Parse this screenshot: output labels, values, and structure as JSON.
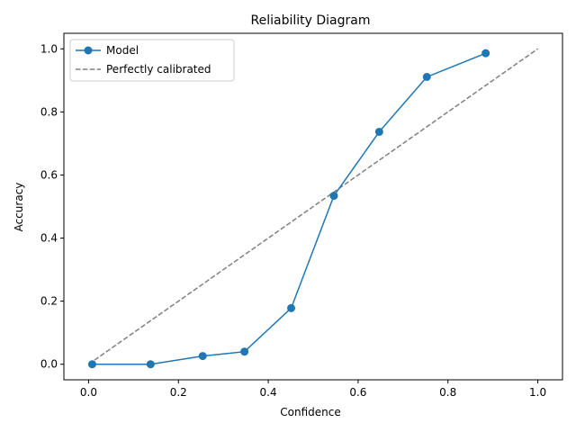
{
  "chart_data": {
    "type": "line",
    "title": "Reliability Diagram",
    "xlabel": "Confidence",
    "ylabel": "Accuracy",
    "xlim": [
      -0.055,
      1.055
    ],
    "ylim": [
      -0.0493,
      1.0493
    ],
    "xticks": [
      0.0,
      0.2,
      0.4,
      0.6,
      0.8,
      1.0
    ],
    "xtick_labels": [
      "0.0",
      "0.2",
      "0.4",
      "0.6",
      "0.8",
      "1.0"
    ],
    "yticks": [
      0.0,
      0.2,
      0.4,
      0.6,
      0.8,
      1.0
    ],
    "ytick_labels": [
      "0.0",
      "0.2",
      "0.4",
      "0.6",
      "0.8",
      "1.0"
    ],
    "grid": false,
    "legend_position": "upper-left",
    "series": [
      {
        "name": "Model",
        "style": "solid-with-circle-markers",
        "color": "#1f77b4",
        "x": [
          0.008,
          0.138,
          0.254,
          0.347,
          0.451,
          0.546,
          0.647,
          0.753,
          0.884
        ],
        "y": [
          0.0,
          0.0,
          0.026,
          0.04,
          0.178,
          0.534,
          0.737,
          0.911,
          0.986
        ]
      },
      {
        "name": "Perfectly calibrated",
        "style": "dashed",
        "color": "#808080",
        "x": [
          0.0,
          1.0
        ],
        "y": [
          0.0,
          1.0
        ]
      }
    ]
  }
}
